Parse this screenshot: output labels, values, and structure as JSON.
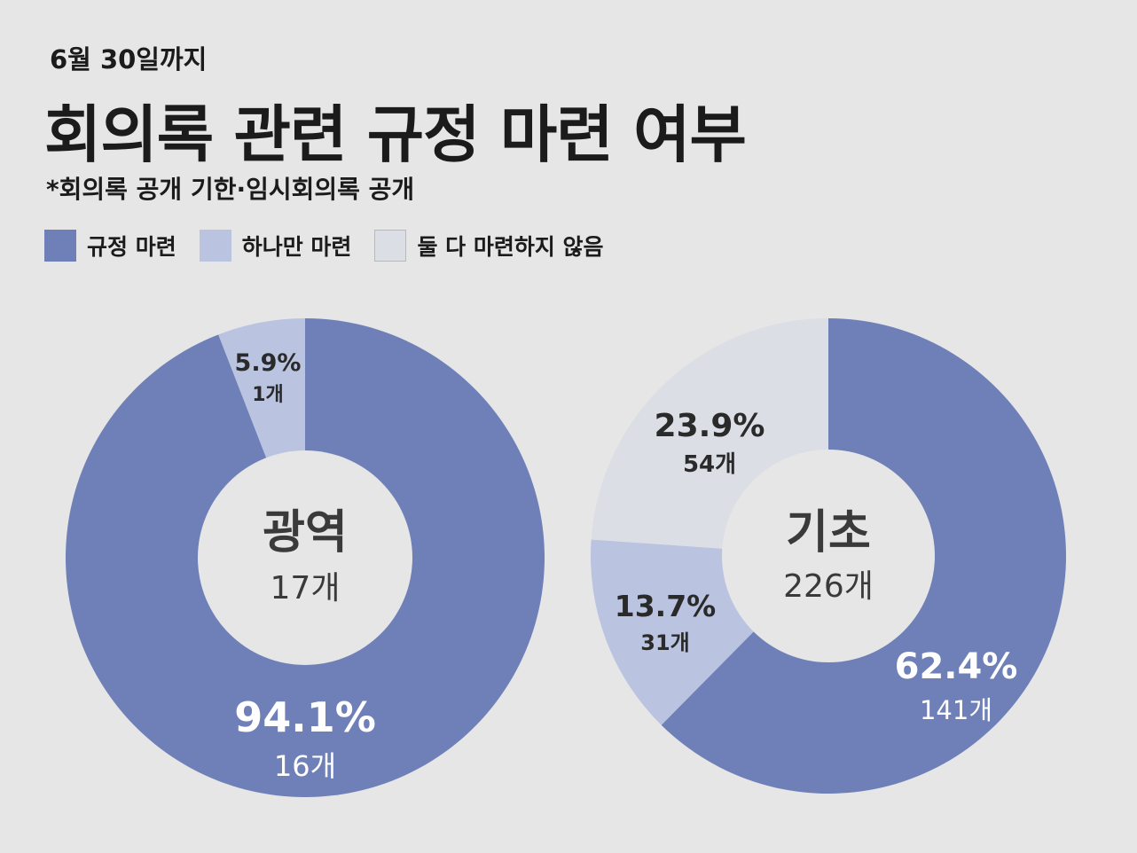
{
  "header": {
    "date": "6월 30일까지",
    "title": "회의록 관련 규정 마련 여부",
    "subtitle": "*회의록 공개 기한·임시회의록 공개"
  },
  "legend": [
    {
      "label": "규정 마련",
      "color": "#6e80b7"
    },
    {
      "label": "하나만 마련",
      "color": "#bac3e0"
    },
    {
      "label": "둘 다 마련하지 않음",
      "color": "#dcdee5"
    }
  ],
  "chart_data": [
    {
      "type": "pie",
      "center_title": "광역",
      "center_count": "17개",
      "slices": [
        {
          "category": "규정 마련",
          "percent": 94.1,
          "percent_label": "94.1%",
          "count_label": "16개",
          "color": "#6e80b7"
        },
        {
          "category": "하나만 마련",
          "percent": 5.9,
          "percent_label": "5.9%",
          "count_label": "1개",
          "color": "#bac3e0"
        }
      ]
    },
    {
      "type": "pie",
      "center_title": "기초",
      "center_count": "226개",
      "slices": [
        {
          "category": "규정 마련",
          "percent": 62.4,
          "percent_label": "62.4%",
          "count_label": "141개",
          "color": "#6e80b7"
        },
        {
          "category": "하나만 마련",
          "percent": 13.7,
          "percent_label": "13.7%",
          "count_label": "31개",
          "color": "#bac3e0"
        },
        {
          "category": "둘 다 마련하지 않음",
          "percent": 23.9,
          "percent_label": "23.9%",
          "count_label": "54개",
          "color": "#dcdee5"
        }
      ]
    }
  ]
}
